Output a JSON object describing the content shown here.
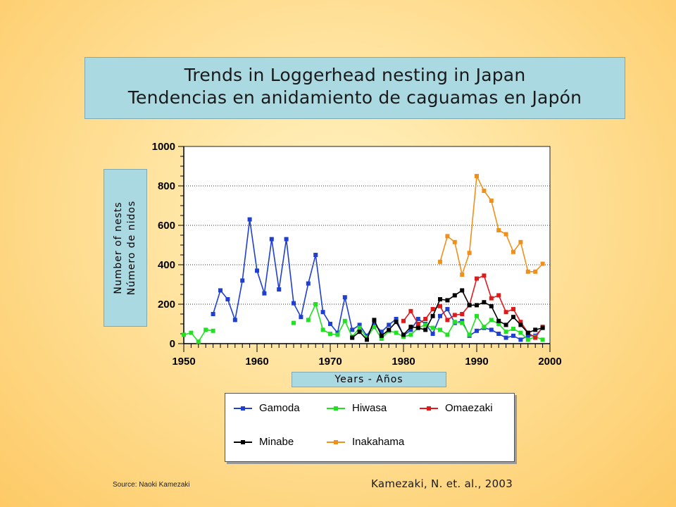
{
  "title": {
    "line1": "Trends in Loggerhead nesting in Japan",
    "line2": "Tendencias en anidamiento de caguamas en Japón"
  },
  "axis_labels": {
    "y_line1": "Number of nests",
    "y_line2": "Número de nidos",
    "x": "Years - Años"
  },
  "source_left": "Source: Naoki Kamezaki",
  "source_right": "Kamezaki, N. et. al., 2003",
  "colors": {
    "Gamoda": "#1f3fd0",
    "Hiwasa": "#22e022",
    "Omaezaki": "#e01a1a",
    "Minabe": "#000000",
    "Inakahama": "#f0901c",
    "background": "#fdd27a",
    "label_box": "#abd9e2"
  },
  "chart_data": {
    "type": "line",
    "title": "",
    "xlabel": "Years - Años",
    "ylabel": "Number of nests",
    "xlim": [
      1950,
      2000
    ],
    "ylim": [
      0,
      1000
    ],
    "x_ticks": [
      1950,
      1960,
      1970,
      1980,
      1990,
      2000
    ],
    "y_ticks": [
      0,
      200,
      400,
      600,
      800,
      1000
    ],
    "grid": "horizontal dotted",
    "legend_position": "bottom",
    "series": [
      {
        "name": "Gamoda",
        "x": [
          1954,
          1955,
          1956,
          1957,
          1958,
          1959,
          1960,
          1961,
          1962,
          1963,
          1964,
          1965,
          1966,
          1967,
          1968,
          1969,
          1970,
          1971,
          1972,
          1973,
          1974,
          1975,
          1976,
          1977,
          1978,
          1979,
          1980,
          1981,
          1982,
          1983,
          1984,
          1985,
          1986,
          1987,
          1988,
          1989,
          1990,
          1991,
          1992,
          1993,
          1994,
          1995,
          1996,
          1997,
          1998,
          1999
        ],
        "values": [
          150,
          270,
          225,
          120,
          320,
          630,
          370,
          255,
          530,
          275,
          530,
          205,
          135,
          305,
          450,
          160,
          100,
          55,
          235,
          70,
          95,
          40,
          100,
          60,
          95,
          125,
          40,
          70,
          125,
          100,
          50,
          140,
          175,
          105,
          115,
          40,
          65,
          80,
          70,
          50,
          30,
          40,
          20,
          40,
          40,
          80
        ]
      },
      {
        "name": "Hiwasa",
        "x": [
          1950,
          1951,
          1952,
          1953,
          1954,
          1965,
          1967,
          1968,
          1969,
          1970,
          1971,
          1972,
          1973,
          1974,
          1975,
          1976,
          1977,
          1978,
          1979,
          1980,
          1981,
          1982,
          1983,
          1984,
          1985,
          1986,
          1987,
          1988,
          1989,
          1990,
          1991,
          1992,
          1993,
          1994,
          1995,
          1996,
          1997,
          1998,
          1999
        ],
        "values": [
          45,
          55,
          10,
          70,
          65,
          105,
          120,
          200,
          70,
          50,
          45,
          115,
          35,
          80,
          30,
          85,
          25,
          65,
          55,
          35,
          45,
          80,
          95,
          80,
          70,
          45,
          110,
          105,
          45,
          140,
          85,
          120,
          100,
          60,
          75,
          55,
          20,
          35,
          20
        ]
      },
      {
        "name": "Omaezaki",
        "x": [
          1980,
          1981,
          1982,
          1983,
          1984,
          1985,
          1986,
          1987,
          1988,
          1989,
          1990,
          1991,
          1992,
          1993,
          1994,
          1995,
          1996,
          1997,
          1998,
          1999
        ],
        "values": [
          115,
          165,
          100,
          125,
          175,
          190,
          120,
          145,
          150,
          195,
          330,
          345,
          230,
          245,
          160,
          175,
          110,
          55,
          30,
          85
        ]
      },
      {
        "name": "Minabe",
        "x": [
          1973,
          1974,
          1975,
          1976,
          1977,
          1978,
          1979,
          1980,
          1981,
          1982,
          1983,
          1984,
          1985,
          1986,
          1987,
          1988,
          1989,
          1990,
          1991,
          1992,
          1993,
          1994,
          1995,
          1996,
          1997,
          1998,
          1999
        ],
        "values": [
          30,
          60,
          20,
          120,
          40,
          70,
          110,
          45,
          85,
          80,
          70,
          140,
          225,
          220,
          245,
          270,
          195,
          195,
          210,
          190,
          115,
          95,
          135,
          95,
          55,
          70,
          80
        ]
      },
      {
        "name": "Inakahama",
        "x": [
          1985,
          1986,
          1987,
          1988,
          1989,
          1990,
          1991,
          1992,
          1993,
          1994,
          1995,
          1996,
          1997,
          1998,
          1999
        ],
        "values": [
          415,
          545,
          515,
          350,
          460,
          850,
          775,
          725,
          575,
          555,
          465,
          515,
          365,
          365,
          405
        ]
      }
    ]
  },
  "legend": {
    "items": [
      "Gamoda",
      "Hiwasa",
      "Omaezaki",
      "Minabe",
      "Inakahama"
    ]
  }
}
